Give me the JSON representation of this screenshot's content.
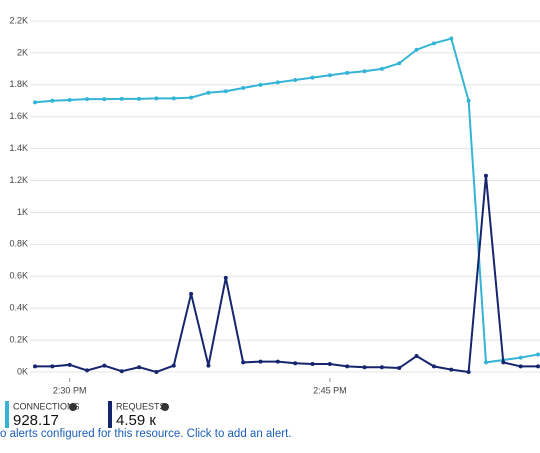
{
  "chart_data": {
    "type": "line",
    "categories": [
      null,
      null,
      "2:30 PM",
      null,
      null,
      null,
      null,
      null,
      null,
      null,
      null,
      null,
      null,
      null,
      null,
      null,
      null,
      "2:45 PM",
      null,
      null,
      null,
      null,
      null,
      null,
      null,
      null,
      null,
      null,
      null,
      null
    ],
    "series": [
      {
        "name": "CONNECTIONS",
        "color": "#35b4d6",
        "values": [
          1690,
          1700,
          1705,
          1710,
          1710,
          1712,
          1712,
          1715,
          1715,
          1720,
          1750,
          1760,
          1780,
          1800,
          1815,
          1830,
          1845,
          1860,
          1875,
          1885,
          1900,
          1935,
          2020,
          2060,
          2090,
          1700,
          60,
          75,
          90,
          110
        ]
      },
      {
        "name": "REQUESTS",
        "color": "#15256e",
        "values": [
          35,
          35,
          45,
          10,
          40,
          5,
          30,
          0,
          40,
          490,
          40,
          590,
          60,
          65,
          65,
          55,
          50,
          50,
          35,
          30,
          30,
          25,
          100,
          35,
          15,
          0,
          1230,
          60,
          35,
          35
        ]
      }
    ],
    "ylim": [
      0,
      2200
    ],
    "yticks": [
      {
        "value": 0,
        "label": "0K"
      },
      {
        "value": 200,
        "label": "0.2K"
      },
      {
        "value": 400,
        "label": "0.4K"
      },
      {
        "value": 600,
        "label": "0.6K"
      },
      {
        "value": 800,
        "label": "0.8K"
      },
      {
        "value": 1000,
        "label": "1K"
      },
      {
        "value": 1200,
        "label": "1.2K"
      },
      {
        "value": 1400,
        "label": "1.4K"
      },
      {
        "value": 1600,
        "label": "1.6K"
      },
      {
        "value": 1800,
        "label": "1.8K"
      },
      {
        "value": 2000,
        "label": "2K"
      },
      {
        "value": 2200,
        "label": "2.2K"
      }
    ],
    "grid": true,
    "summary": [
      "928.17",
      "4.59 к"
    ],
    "alert_text": "o alerts configured for this resource. Click to add an alert."
  }
}
